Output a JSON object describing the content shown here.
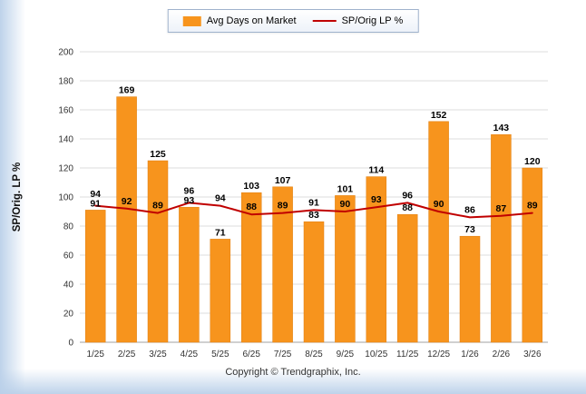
{
  "legend": {
    "bar_label": "Avg Days on Market",
    "line_label": "SP/Orig LP %"
  },
  "footer": {
    "copyright": "Copyright © Trendgraphix, Inc."
  },
  "colors": {
    "bar": "#F7941D",
    "line": "#C00000",
    "grid": "#dcdcdc",
    "axis": "#a0a0a0",
    "label": "#000000",
    "tick": "#333333"
  },
  "chart_data": {
    "type": "bar",
    "title": "",
    "xlabel": "",
    "ylabel": "SP/Orig. LP %",
    "ylim": [
      0,
      200
    ],
    "ytick_step": 20,
    "grid": true,
    "legend_position": "top-center",
    "categories": [
      "1/25",
      "2/25",
      "3/25",
      "4/25",
      "5/25",
      "6/25",
      "7/25",
      "8/25",
      "9/25",
      "10/25",
      "11/25",
      "12/25",
      "1/26",
      "2/26",
      "3/26"
    ],
    "series": [
      {
        "name": "Avg Days on Market",
        "type": "bar",
        "color": "#F7941D",
        "values": [
          91,
          169,
          125,
          93,
          71,
          103,
          107,
          83,
          101,
          114,
          88,
          152,
          73,
          143,
          120
        ]
      },
      {
        "name": "SP/Orig LP %",
        "type": "line",
        "color": "#C00000",
        "values": [
          94,
          92,
          89,
          96,
          94,
          88,
          89,
          91,
          90,
          93,
          96,
          90,
          86,
          87,
          89
        ]
      }
    ]
  }
}
